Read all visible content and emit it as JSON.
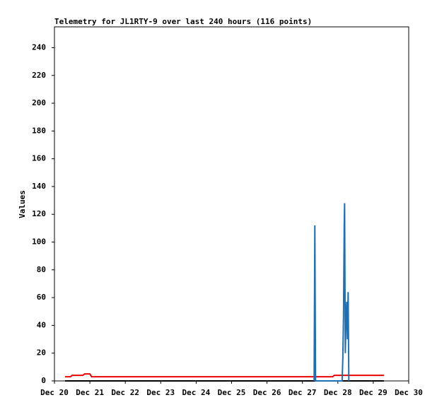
{
  "chart_data": {
    "type": "line",
    "title": "Telemetry for JL1RTY-9 over last 240 hours (116 points)",
    "y_label": "Values",
    "xlim": [
      20,
      30
    ],
    "xticks": [
      {
        "value": 20,
        "label": "Dec 20"
      },
      {
        "value": 21,
        "label": "Dec 21"
      },
      {
        "value": 22,
        "label": "Dec 22"
      },
      {
        "value": 23,
        "label": "Dec 23"
      },
      {
        "value": 24,
        "label": "Dec 24"
      },
      {
        "value": 25,
        "label": "Dec 25"
      },
      {
        "value": 26,
        "label": "Dec 26"
      },
      {
        "value": 27,
        "label": "Dec 27"
      },
      {
        "value": 28,
        "label": "Dec 28"
      },
      {
        "value": 29,
        "label": "Dec 29"
      },
      {
        "value": 30,
        "label": "Dec 30"
      }
    ],
    "ylim": [
      0,
      255
    ],
    "yticks": [
      0,
      20,
      40,
      60,
      80,
      100,
      120,
      140,
      160,
      180,
      200,
      220,
      240
    ],
    "grid": false,
    "series": [
      {
        "color": "#000000",
        "x": [
          20.3,
          29.3
        ],
        "values": [
          0,
          0
        ]
      },
      {
        "color": "#ee0000",
        "x": [
          20.3,
          20.45,
          20.5,
          20.8,
          20.85,
          21.0,
          21.05,
          27.4,
          27.45,
          27.85,
          27.9,
          28.4,
          28.5,
          29.3
        ],
        "values": [
          3,
          3,
          4,
          4,
          5,
          5,
          3,
          3,
          3,
          3,
          4,
          4,
          4,
          4
        ]
      },
      {
        "color": "#1f6fb4",
        "x": [
          27.33,
          27.35,
          27.37,
          28.12,
          28.14,
          28.16,
          28.17,
          28.18,
          28.19,
          28.21,
          28.23,
          28.25,
          28.27,
          28.29,
          28.31
        ],
        "values": [
          0,
          112,
          0,
          0,
          16,
          48,
          80,
          112,
          128,
          20,
          45,
          57,
          30,
          64,
          0
        ]
      }
    ]
  }
}
